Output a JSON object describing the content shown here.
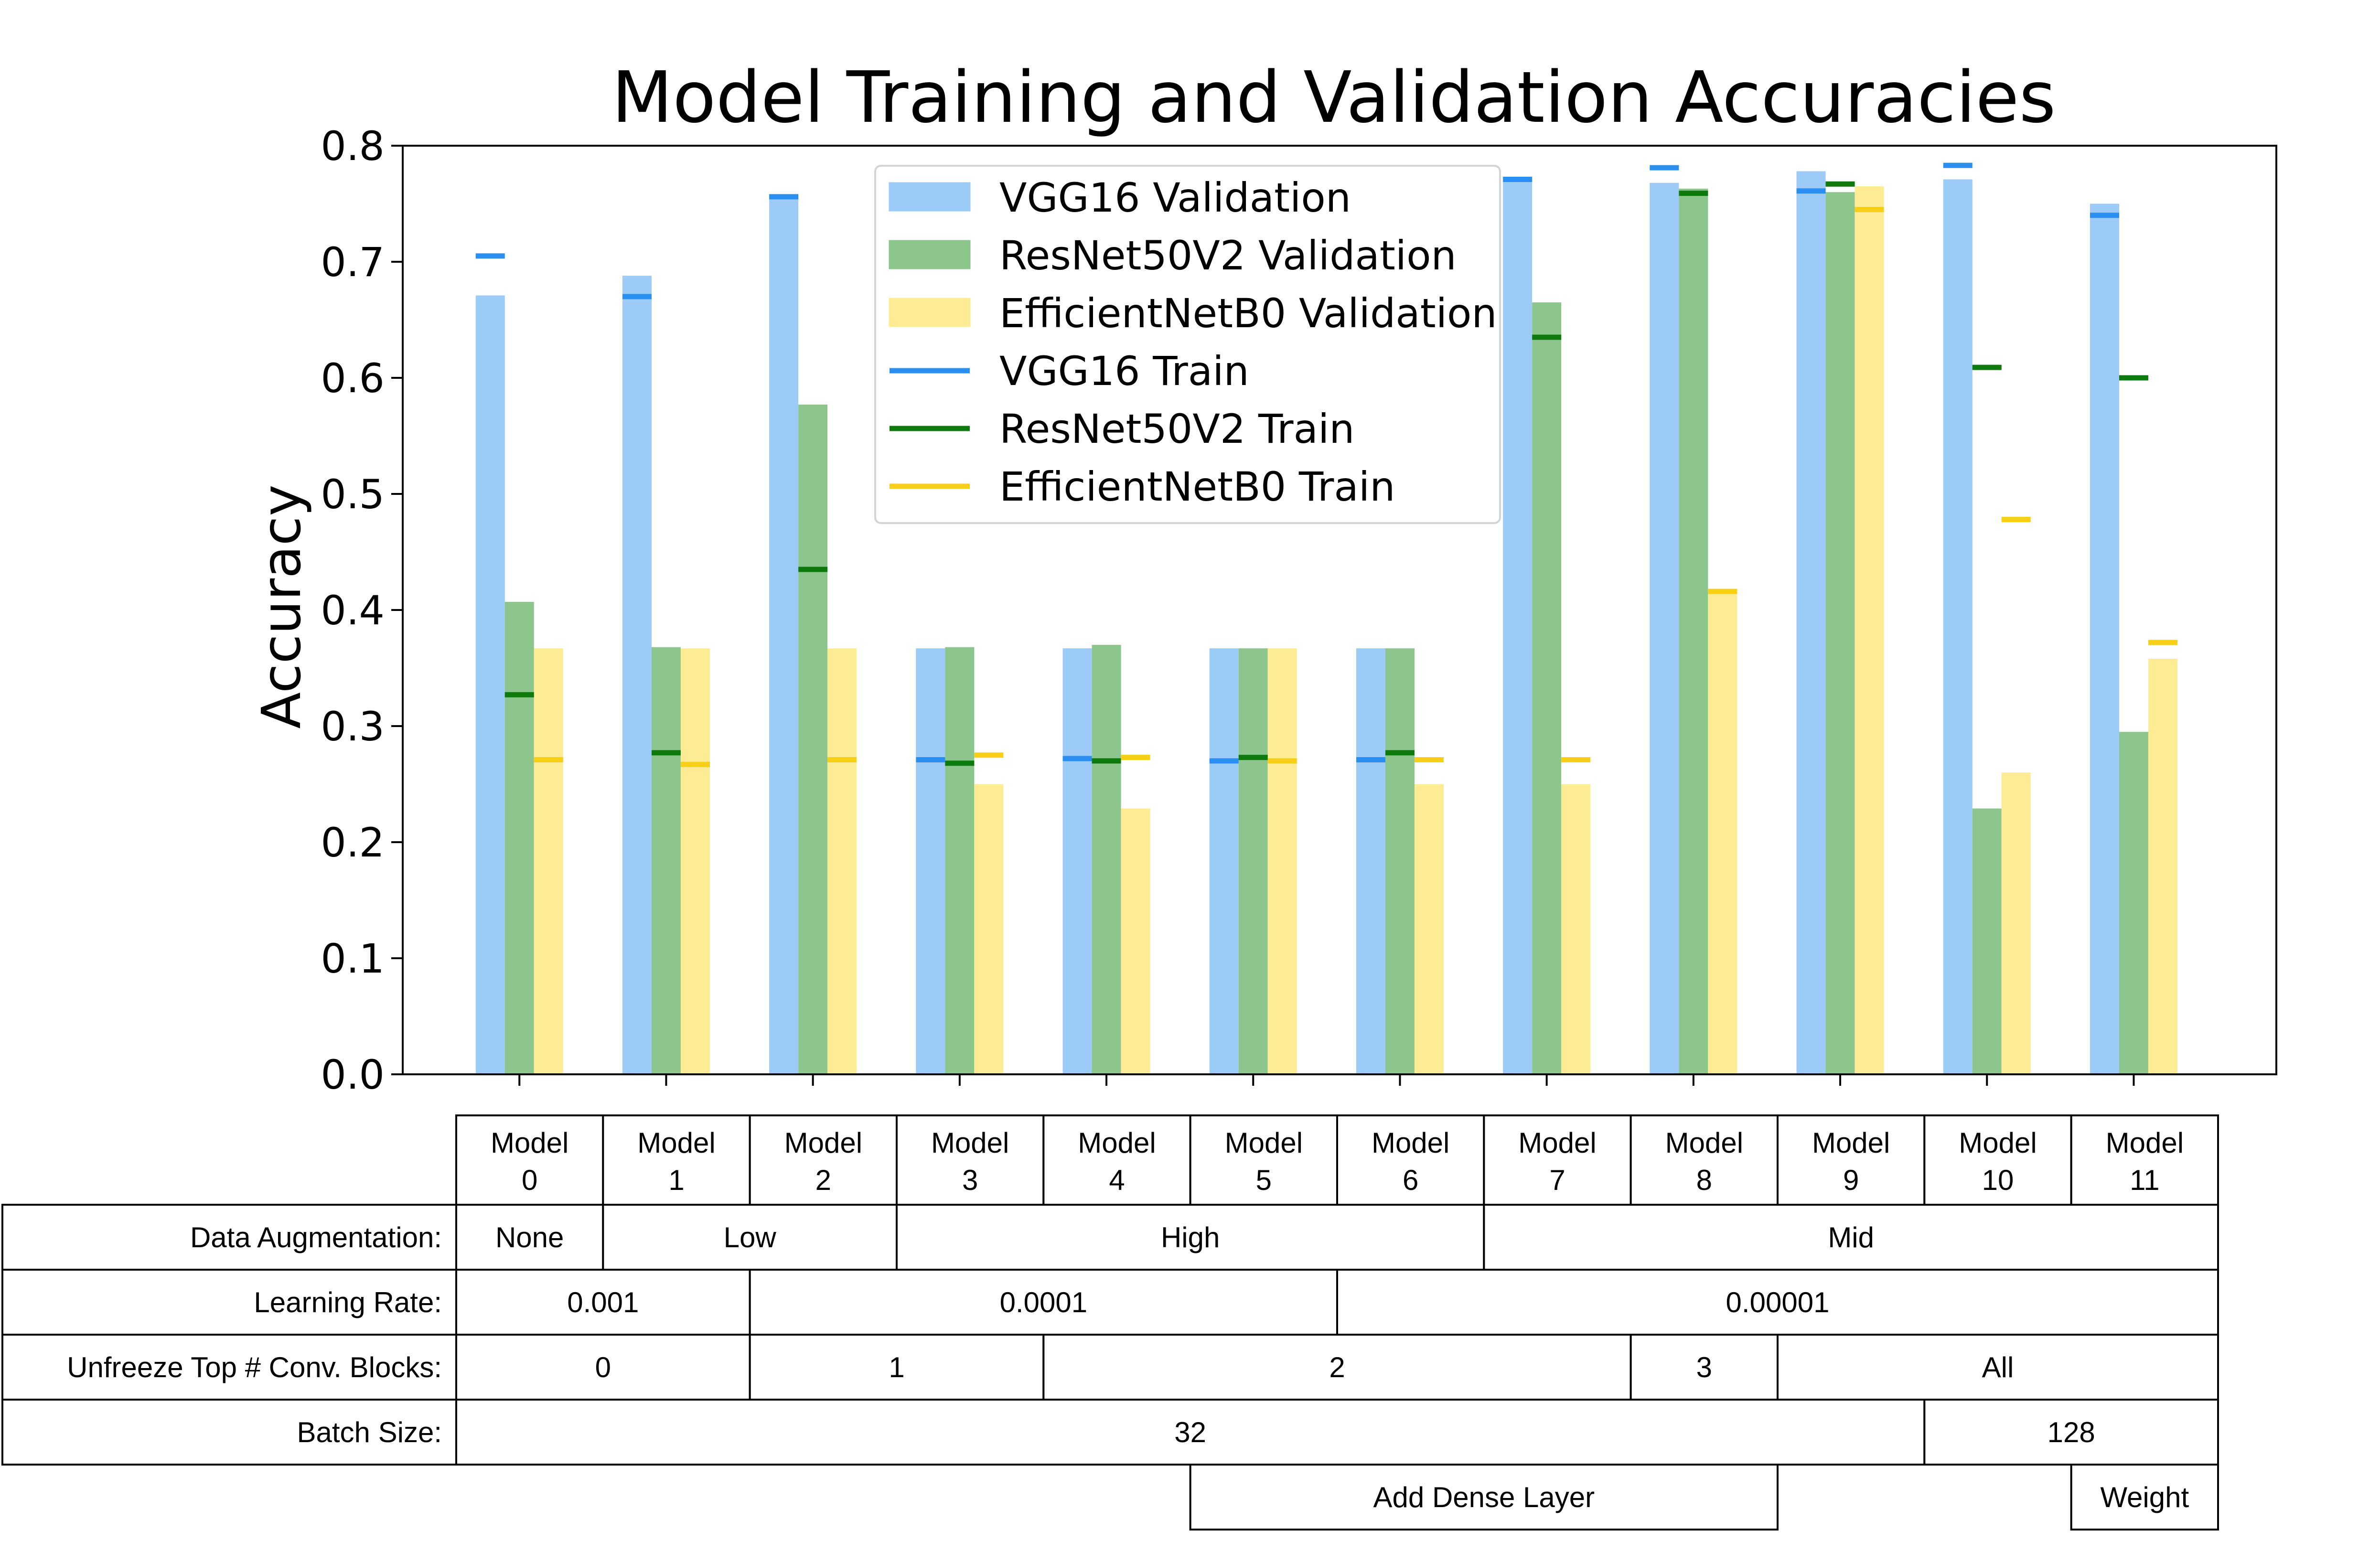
{
  "chart_data": {
    "type": "bar",
    "title": "Model Training and Validation Accuracies",
    "xlabel": "",
    "ylabel": "Accuracy",
    "ylim": [
      0,
      0.8
    ],
    "yticks": [
      "0.0",
      "0.1",
      "0.2",
      "0.3",
      "0.4",
      "0.5",
      "0.6",
      "0.7",
      "0.8"
    ],
    "grid": false,
    "legend_position": "top-center",
    "categories": [
      "Model 0",
      "Model 1",
      "Model 2",
      "Model 3",
      "Model 4",
      "Model 5",
      "Model 6",
      "Model 7",
      "Model 8",
      "Model 9",
      "Model 10",
      "Model 11"
    ],
    "series": [
      {
        "name": "VGG16 Validation",
        "kind": "bar",
        "color": "#9ccbf7",
        "values": [
          0.671,
          0.688,
          0.757,
          0.367,
          0.367,
          0.367,
          0.367,
          0.771,
          0.768,
          0.778,
          0.771,
          0.75
        ]
      },
      {
        "name": "ResNet50V2 Validation",
        "kind": "bar",
        "color": "#8cc68c",
        "values": [
          0.407,
          0.368,
          0.577,
          0.368,
          0.37,
          0.367,
          0.367,
          0.665,
          0.763,
          0.76,
          0.229,
          0.295
        ]
      },
      {
        "name": "EfficientNetB0 Validation",
        "kind": "bar",
        "color": "#feec94",
        "values": [
          0.367,
          0.367,
          0.367,
          0.25,
          0.229,
          0.367,
          0.25,
          0.25,
          0.418,
          0.765,
          0.26,
          0.358
        ]
      },
      {
        "name": "VGG16 Train",
        "kind": "marker",
        "color": "#2a8ff0",
        "values": [
          0.705,
          0.67,
          0.756,
          0.271,
          0.272,
          0.27,
          0.271,
          0.771,
          0.781,
          0.761,
          0.783,
          0.74
        ]
      },
      {
        "name": "ResNet50V2 Train",
        "kind": "marker",
        "color": "#0e7a0e",
        "values": [
          0.327,
          0.277,
          0.435,
          0.268,
          0.27,
          0.273,
          0.277,
          0.635,
          0.759,
          0.767,
          0.609,
          0.6
        ]
      },
      {
        "name": "EfficientNetB0 Train",
        "kind": "marker",
        "color": "#f7cf16",
        "values": [
          0.271,
          0.267,
          0.271,
          0.275,
          0.273,
          0.27,
          0.271,
          0.271,
          0.416,
          0.745,
          0.478,
          0.372
        ]
      }
    ],
    "table": {
      "columns": [
        [
          "Model",
          "0"
        ],
        [
          "Model",
          "1"
        ],
        [
          "Model",
          "2"
        ],
        [
          "Model",
          "3"
        ],
        [
          "Model",
          "4"
        ],
        [
          "Model",
          "5"
        ],
        [
          "Model",
          "6"
        ],
        [
          "Model",
          "7"
        ],
        [
          "Model",
          "8"
        ],
        [
          "Model",
          "9"
        ],
        [
          "Model",
          "10"
        ],
        [
          "Model",
          "11"
        ]
      ],
      "rows": [
        {
          "label": "Data Augmentation:",
          "cells": [
            {
              "text": "None",
              "start": 0,
              "span": 1
            },
            {
              "text": "Low",
              "start": 1,
              "span": 2
            },
            {
              "text": "High",
              "start": 3,
              "span": 4
            },
            {
              "text": "Mid",
              "start": 7,
              "span": 5
            }
          ]
        },
        {
          "label": "Learning Rate:",
          "cells": [
            {
              "text": "0.001",
              "start": 0,
              "span": 2
            },
            {
              "text": "0.0001",
              "start": 2,
              "span": 4
            },
            {
              "text": "0.00001",
              "start": 6,
              "span": 6
            }
          ]
        },
        {
          "label": "Unfreeze Top # Conv. Blocks:",
          "cells": [
            {
              "text": "0",
              "start": 0,
              "span": 2
            },
            {
              "text": "1",
              "start": 2,
              "span": 2
            },
            {
              "text": "2",
              "start": 4,
              "span": 4
            },
            {
              "text": "3",
              "start": 8,
              "span": 1
            },
            {
              "text": "All",
              "start": 9,
              "span": 3
            }
          ]
        },
        {
          "label": "Batch Size:",
          "cells": [
            {
              "text": "32",
              "start": 0,
              "span": 10
            },
            {
              "text": "128",
              "start": 10,
              "span": 2
            }
          ]
        },
        {
          "label": "",
          "cells": [
            {
              "text": "Add Dense Layer",
              "start": 5,
              "span": 4
            },
            {
              "text": "Weight",
              "start": 11,
              "span": 1
            }
          ]
        }
      ]
    }
  }
}
